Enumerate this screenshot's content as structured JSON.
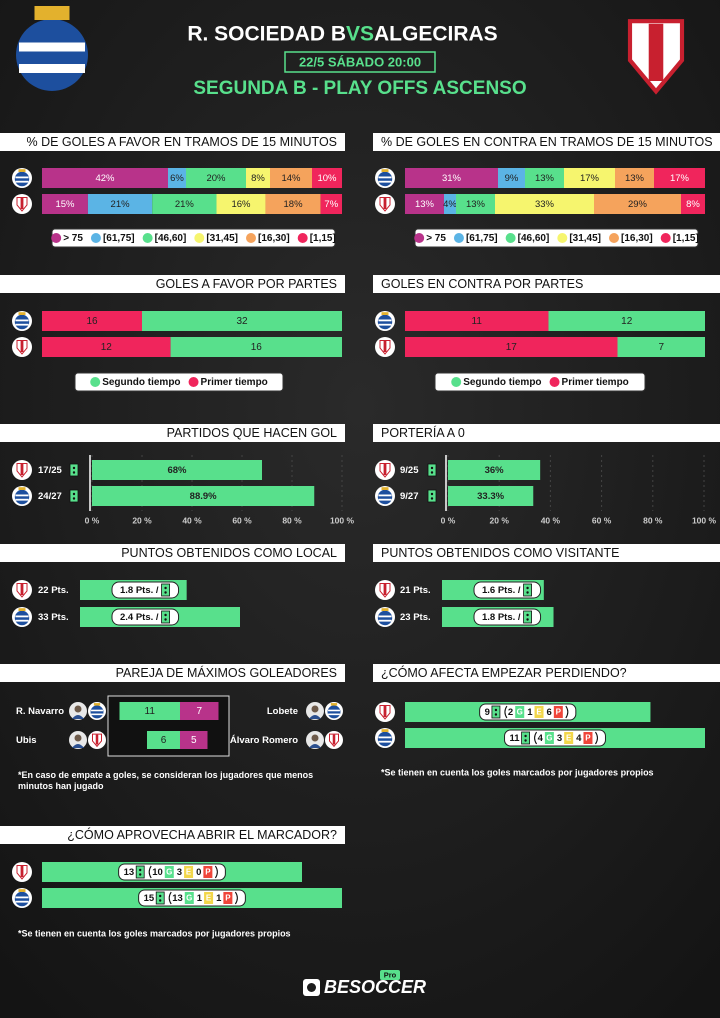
{
  "header": {
    "home": "R. SOCIEDAD B",
    "vs": "VS",
    "away": "ALGECIRAS",
    "date": "22/5 SÁBADO 20:00",
    "competition": "SEGUNDA B - PLAY OFFS ASCENSO"
  },
  "intervals": {
    "labels": [
      "> 75",
      "[61,75]",
      "[46,60]",
      "[31,45]",
      "[16,30]",
      "[1,15]"
    ],
    "colors": [
      "#b8338a",
      "#5bb4e5",
      "#58e08c",
      "#f6f56e",
      "#f5a35c",
      "#f0255c"
    ]
  },
  "goals_for_by_15": {
    "title": "% DE GOLES A FAVOR EN TRAMOS DE 15 MINUTOS",
    "rows": [
      {
        "values": [
          42,
          6,
          20,
          8,
          14,
          10
        ],
        "value_labels": [
          "42%",
          "6%",
          "20%",
          "8%",
          "14%",
          "10%"
        ]
      },
      {
        "values": [
          15,
          21,
          21,
          16,
          18,
          7
        ],
        "value_labels": [
          "15%",
          "21%",
          "21%",
          "16%",
          "18%",
          "7%"
        ]
      }
    ]
  },
  "goals_against_by_15": {
    "title": "% DE GOLES EN CONTRA EN TRAMOS DE 15 MINUTOS",
    "rows": [
      {
        "values": [
          31,
          9,
          13,
          17,
          13,
          17
        ],
        "value_labels": [
          "31%",
          "9%",
          "13%",
          "17%",
          "13%",
          "17%"
        ]
      },
      {
        "values": [
          13,
          4,
          13,
          33,
          29,
          8
        ],
        "value_labels": [
          "13%",
          "4%",
          "13%",
          "33%",
          "29%",
          "8%"
        ]
      }
    ]
  },
  "halves": {
    "labels": [
      "Segundo tiempo",
      "Primer tiempo"
    ],
    "colors": [
      "#58e08c",
      "#f0255c"
    ]
  },
  "goals_for_by_half": {
    "title": "GOLES A FAVOR POR PARTES",
    "rows": [
      [
        32,
        16
      ],
      [
        16,
        12
      ]
    ]
  },
  "goals_against_by_half": {
    "title": "GOLES EN CONTRA POR PARTES",
    "rows": [
      [
        12,
        11
      ],
      [
        7,
        17
      ]
    ]
  },
  "percent_axis": {
    "xlim": [
      0,
      100
    ],
    "xticks": [
      {
        "value": 0,
        "label": "0 %"
      },
      {
        "value": 20,
        "label": "20 %"
      },
      {
        "value": 40,
        "label": "40 %"
      },
      {
        "value": 60,
        "label": "60 %"
      },
      {
        "value": 80,
        "label": "80 %"
      },
      {
        "value": 100,
        "label": "100 %"
      }
    ]
  },
  "scoring": {
    "title": "PARTIDOS QUE HACEN GOL",
    "rows": [
      {
        "ratio": "17/25",
        "value": 68,
        "value_label": "68%"
      },
      {
        "ratio": "24/27",
        "value": 88.9,
        "value_label": "88.9%"
      }
    ]
  },
  "clean_sheets": {
    "title": "PORTERÍA A 0",
    "rows": [
      {
        "ratio": "9/25",
        "value": 36,
        "value_label": "36%"
      },
      {
        "ratio": "9/27",
        "value": 33.3,
        "value_label": "33.3%"
      }
    ]
  },
  "home_points": {
    "title": "PUNTOS OBTENIDOS COMO LOCAL",
    "rows": [
      {
        "points": 22,
        "points_label": "22 Pts.",
        "per_game": "1.8 Pts. /"
      },
      {
        "points": 33,
        "points_label": "33 Pts.",
        "per_game": "2.4 Pts. /"
      }
    ]
  },
  "away_points": {
    "title": "PUNTOS OBTENIDOS COMO VISITANTE",
    "rows": [
      {
        "points": 21,
        "points_label": "21 Pts.",
        "per_game": "1.6 Pts. /"
      },
      {
        "points": 23,
        "points_label": "23 Pts.",
        "per_game": "1.8 Pts. /"
      }
    ]
  },
  "top_scorers": {
    "title": "PAREJA DE MÁXIMOS GOLEADORES",
    "colors": [
      "#58e08c",
      "#b8338a"
    ],
    "rows": [
      {
        "left_name": "R. Navarro",
        "left_goals": 11,
        "right_name": "Lobete",
        "right_goals": 7
      },
      {
        "left_name": "Ubis",
        "left_goals": 6,
        "right_name": "Álvaro Romero",
        "right_goals": 5
      }
    ],
    "note": "*En caso de empate a goles, se consideran los jugadores que menos minutos han jugado"
  },
  "result_letters": [
    "G",
    "E",
    "P"
  ],
  "result_colors": [
    "#58e08c",
    "#f2d64a",
    "#f0453a"
  ],
  "comeback": {
    "title": "¿CÓMO AFECTA EMPEZAR PERDIENDO?",
    "rows": [
      {
        "total": 9,
        "won": 2,
        "drawn": 1,
        "lost": 6
      },
      {
        "total": 11,
        "won": 4,
        "drawn": 3,
        "lost": 4
      }
    ],
    "note": "*Se tienen en cuenta los goles marcados por jugadores propios"
  },
  "opening_goal": {
    "title": "¿CÓMO APROVECHA ABRIR EL MARCADOR?",
    "rows": [
      {
        "total": 13,
        "won": 10,
        "drawn": 3,
        "lost": 0
      },
      {
        "total": 15,
        "won": 13,
        "drawn": 1,
        "lost": 1
      }
    ],
    "note": "*Se tienen en cuenta los goles marcados por jugadores propios"
  },
  "footer": {
    "brand": "BESOCCER",
    "badge": "Pro"
  }
}
